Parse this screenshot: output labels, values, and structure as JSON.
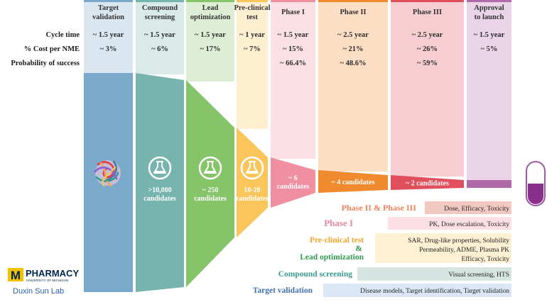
{
  "stages": [
    {
      "title": [
        "Target",
        "validation"
      ],
      "cycle": "~ 1.5 year",
      "cost": "~ 3%",
      "success": "",
      "candidates": [],
      "color": "#7aa9cc"
    },
    {
      "title": [
        "Compound",
        "screening"
      ],
      "cycle": "~ 1.5 year",
      "cost": "~ 6%",
      "success": "",
      "candidates": [
        ">10,000",
        "candidates"
      ],
      "color": "#76b4ad"
    },
    {
      "title": [
        "Lead",
        "optimization"
      ],
      "cycle": "~ 1.5 year",
      "cost": "~ 17%",
      "success": "",
      "candidates": [
        "~ 250",
        "candidates"
      ],
      "color": "#86c46a"
    },
    {
      "title": [
        "Pre-clinical",
        "test"
      ],
      "cycle": "~ 1 year",
      "cost": "~ 7%",
      "success": "",
      "candidates": [
        "10-20",
        "candidates"
      ],
      "color": "#fac65c"
    },
    {
      "title": [
        "Phase I"
      ],
      "cycle": "~ 1.5 year",
      "cost": "~ 15%",
      "success": "~ 66.4%",
      "candidates": [
        "~ 6",
        "candidates"
      ],
      "color": "#ef8fa1"
    },
    {
      "title": [
        "Phase II"
      ],
      "cycle": "~ 2.5 year",
      "cost": "~ 21%",
      "success": "~ 48.6%",
      "candidates": [
        "~ 4 candidates"
      ],
      "color": "#ef8a2e"
    },
    {
      "title": [
        "Phase III"
      ],
      "cycle": "~ 2.5 year",
      "cost": "~ 26%",
      "success": "~ 59%",
      "candidates": [
        "~ 2 candidates"
      ],
      "color": "#e0505c"
    },
    {
      "title": [
        "Approval",
        "to launch"
      ],
      "cycle": "~ 1.5 year",
      "cost": "~ 5%",
      "success": "",
      "candidates": [],
      "color": "#b16aa8"
    }
  ],
  "row_labels": {
    "cycle": "Cycle time",
    "cost": "% Cost per NME",
    "success": "Probability of success"
  },
  "legend": [
    {
      "titles": [
        "Phase II & Phase III"
      ],
      "desc": [
        "Dose, Efficacy, Toxicity"
      ],
      "title_colors": [
        "#f0845a"
      ],
      "bg": "#f1c9c1"
    },
    {
      "titles": [
        "Phase I"
      ],
      "desc": [
        "PK, Dose escalation, Toxicity"
      ],
      "title_colors": [
        "#e58aa0"
      ],
      "bg": "#fde0e5"
    },
    {
      "titles": [
        "Pre-clinical test",
        "&",
        "Lead optimization"
      ],
      "desc": [
        "SAR, Drug-like properties, Solubility",
        "Permeability, ADME, Plasma PK",
        "Efficacy, Toxicity"
      ],
      "title_colors": [
        "#f2a52a",
        "#2f9a49",
        "#2f9a49"
      ],
      "bg": "#fdf0d3"
    },
    {
      "titles": [
        "Compound screening"
      ],
      "desc": [
        "Visual screening, HTS"
      ],
      "title_colors": [
        "#3a9a8f"
      ],
      "bg": "#d6e5e2"
    },
    {
      "titles": [
        "Target validation"
      ],
      "desc": [
        "Disease models, Target identification, Target validation"
      ],
      "title_colors": [
        "#3f6fb0"
      ],
      "bg": "#dbe6f6"
    }
  ],
  "logo": {
    "name": "PHARMACY",
    "sub": "UNIVERSITY OF MICHIGAN",
    "lab": "Duxin Sun Lab",
    "mark": "M"
  }
}
